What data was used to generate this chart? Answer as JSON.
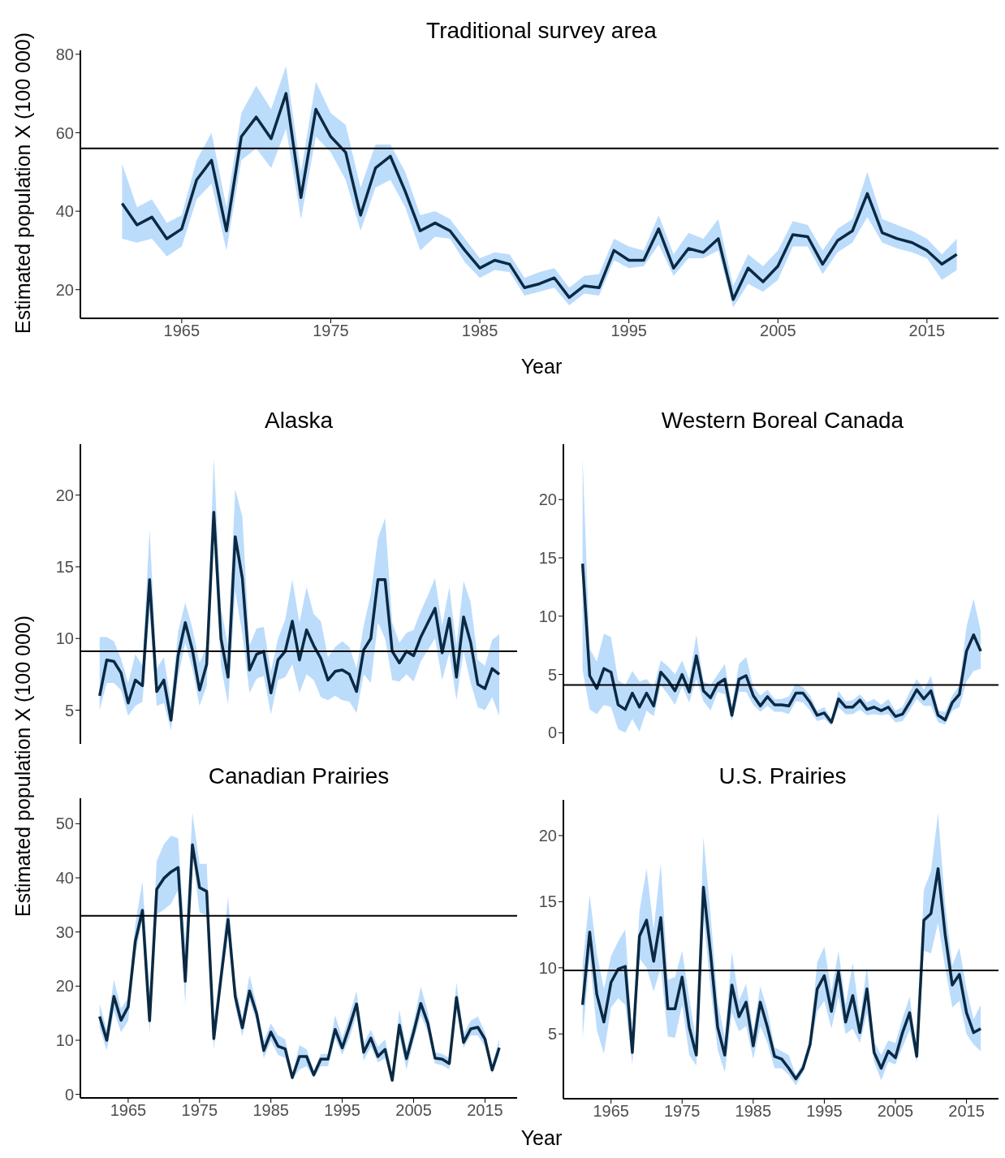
{
  "chart_data": [
    {
      "type": "line",
      "title": "Traditional survey area",
      "xlabel": "Year",
      "ylabel": "Estimated population X (100 000)",
      "x": [
        1961,
        1962,
        1963,
        1964,
        1965,
        1966,
        1967,
        1968,
        1969,
        1970,
        1971,
        1972,
        1973,
        1974,
        1975,
        1976,
        1977,
        1978,
        1979,
        1980,
        1981,
        1982,
        1983,
        1984,
        1985,
        1986,
        1987,
        1988,
        1989,
        1990,
        1991,
        1992,
        1993,
        1994,
        1995,
        1996,
        1997,
        1998,
        1999,
        2000,
        2001,
        2002,
        2003,
        2004,
        2005,
        2006,
        2007,
        2008,
        2009,
        2010,
        2011,
        2012,
        2013,
        2014,
        2015,
        2016,
        2017
      ],
      "series": [
        {
          "color": "#0b2942",
          "values": [
            42,
            36.5,
            38.5,
            33,
            35.5,
            48,
            53,
            35,
            59,
            64,
            58.5,
            70,
            43.5,
            66,
            59,
            55,
            39,
            51,
            54,
            45,
            35,
            37,
            35,
            30,
            25.5,
            27.5,
            26.5,
            20.5,
            21.5,
            23,
            18,
            21,
            20.5,
            30,
            27.5,
            27.5,
            35.5,
            25.5,
            30.5,
            29.5,
            33,
            17.5,
            25.5,
            22,
            26,
            34,
            33.5,
            26.5,
            32.5,
            35,
            44.5,
            34.5,
            33,
            32,
            30,
            26.5,
            29
          ],
          "lower": [
            33,
            32,
            33,
            28.5,
            31,
            43,
            47,
            30,
            53,
            56,
            51,
            61,
            38,
            59,
            55,
            48,
            35,
            46,
            48,
            41,
            30,
            33.5,
            33,
            27,
            23,
            25,
            24.5,
            18.5,
            19.5,
            20.5,
            16,
            19,
            18.5,
            27.5,
            25.5,
            26,
            31.5,
            23.5,
            28,
            28,
            30,
            15.5,
            21.5,
            19.5,
            22.5,
            31,
            31,
            24,
            29.5,
            32,
            38.5,
            32,
            30.5,
            29.5,
            28,
            22.5,
            25
          ],
          "upper": [
            52,
            41,
            43,
            37,
            39,
            53,
            60,
            41,
            65,
            72,
            66,
            77,
            50,
            73,
            65,
            62,
            46,
            57,
            57,
            50,
            39,
            40,
            38,
            33,
            28,
            29.5,
            29,
            23,
            24.5,
            25.5,
            20.5,
            23.5,
            24,
            33,
            31,
            30,
            39,
            29,
            34.5,
            33,
            38,
            21,
            29,
            26,
            30,
            37.5,
            36.5,
            30,
            35.5,
            38,
            50,
            38,
            36.5,
            35,
            33,
            29,
            33
          ]
        }
      ],
      "xlim": [
        1958.2,
        2019.8
      ],
      "xticks": [
        1965,
        1975,
        1985,
        1995,
        2005,
        2015
      ],
      "ylim": [
        12.7,
        81
      ],
      "yticks": [
        20,
        40,
        60,
        80
      ],
      "ref_lines": [
        {
          "axis": "y",
          "value": 56
        }
      ]
    },
    {
      "type": "line",
      "title": "Alaska",
      "ylabel": "Estimated population X (100 000)",
      "x": [
        1961,
        1962,
        1963,
        1964,
        1965,
        1966,
        1967,
        1968,
        1969,
        1970,
        1971,
        1972,
        1973,
        1974,
        1975,
        1976,
        1977,
        1978,
        1979,
        1980,
        1981,
        1982,
        1983,
        1984,
        1985,
        1986,
        1987,
        1988,
        1989,
        1990,
        1991,
        1992,
        1993,
        1994,
        1995,
        1996,
        1997,
        1998,
        1999,
        2000,
        2001,
        2002,
        2003,
        2004,
        2005,
        2006,
        2007,
        2008,
        2009,
        2010,
        2011,
        2012,
        2013,
        2014,
        2015,
        2016,
        2017
      ],
      "series": [
        {
          "color": "#0b2942",
          "values": [
            6.0,
            8.5,
            8.4,
            7.6,
            5.5,
            7.1,
            6.7,
            14.1,
            6.3,
            7.1,
            4.3,
            8.8,
            11.1,
            9.2,
            6.4,
            8.2,
            18.8,
            10,
            7.3,
            17.1,
            14.2,
            7.8,
            8.9,
            9.1,
            6.2,
            8.5,
            9.1,
            11.2,
            8.5,
            10.6,
            9.5,
            8.6,
            7.1,
            7.7,
            7.8,
            7.5,
            6.3,
            9.2,
            10,
            14.1,
            14.1,
            9.1,
            8.3,
            9.1,
            8.8,
            10.1,
            11.1,
            12.1,
            9.0,
            11.4,
            7.3,
            11.5,
            9.7,
            6.8,
            6.5,
            7.9,
            7.5
          ],
          "lower": [
            5.0,
            6.9,
            6.9,
            6.4,
            4.6,
            5.3,
            5.6,
            11.9,
            5.3,
            5.5,
            3.6,
            7.3,
            9.7,
            7.9,
            5.3,
            6.7,
            17.1,
            8.1,
            5.4,
            13.3,
            10.3,
            6.2,
            7.2,
            7.4,
            4.7,
            7.1,
            7.3,
            8.2,
            6.2,
            7.5,
            7.1,
            5.9,
            5.7,
            6.0,
            5.7,
            5.6,
            4.8,
            7.5,
            6.9,
            11.1,
            10,
            7.1,
            7.0,
            7.5,
            7.0,
            8.4,
            9.2,
            10,
            7.1,
            9,
            5.7,
            9.1,
            6.9,
            5.2,
            5.0,
            5.9,
            4.6
          ],
          "upper": [
            10.1,
            10.1,
            9.8,
            8.6,
            6.9,
            8.9,
            8.1,
            17.6,
            7.9,
            8.7,
            5.5,
            10.5,
            12.5,
            10.7,
            8.3,
            9.5,
            22.6,
            12.1,
            9.5,
            20.4,
            18.5,
            9.5,
            10.7,
            10.8,
            7.7,
            10,
            11.3,
            14.1,
            11.1,
            13.6,
            11.7,
            11.2,
            8.7,
            9.4,
            9.8,
            9.4,
            7.9,
            10.9,
            13.1,
            17,
            18.4,
            11.1,
            9.7,
            10.4,
            10.6,
            11.9,
            13,
            14.2,
            10.9,
            13.6,
            9.5,
            14,
            12.5,
            8.5,
            8.1,
            9.9,
            10.3
          ]
        }
      ],
      "xlim": [
        1958.3,
        2019.5
      ],
      "ylim": [
        2.65,
        23.55
      ],
      "yticks": [
        5,
        10,
        15,
        20
      ],
      "tick_labels": "y",
      "ref_lines": [
        {
          "axis": "y",
          "value": 9.1
        }
      ]
    },
    {
      "type": "line",
      "title": "Western Boreal Canada",
      "x": [
        1961,
        1962,
        1963,
        1964,
        1965,
        1966,
        1967,
        1968,
        1969,
        1970,
        1971,
        1972,
        1973,
        1974,
        1975,
        1976,
        1977,
        1978,
        1979,
        1980,
        1981,
        1982,
        1983,
        1984,
        1985,
        1986,
        1987,
        1988,
        1989,
        1990,
        1991,
        1992,
        1993,
        1994,
        1995,
        1996,
        1997,
        1998,
        1999,
        2000,
        2001,
        2002,
        2003,
        2004,
        2005,
        2006,
        2007,
        2008,
        2009,
        2010,
        2011,
        2012,
        2013,
        2014,
        2015,
        2016,
        2017
      ],
      "series": [
        {
          "color": "#0b2942",
          "values": [
            14.5,
            4.9,
            3.8,
            5.5,
            5.2,
            2.4,
            2.0,
            3.4,
            2.2,
            3.4,
            2.3,
            5.2,
            4.5,
            3.6,
            5.0,
            3.5,
            6.6,
            3.6,
            3.0,
            4.2,
            4.6,
            1.5,
            4.6,
            4.9,
            3.2,
            2.3,
            3.1,
            2.4,
            2.4,
            2.3,
            3.4,
            3.4,
            2.6,
            1.5,
            1.7,
            0.9,
            2.9,
            2.2,
            2.2,
            2.8,
            2.0,
            2.2,
            1.9,
            2.2,
            1.4,
            1.6,
            2.6,
            3.7,
            2.9,
            3.6,
            1.5,
            1.1,
            2.6,
            3.3,
            7.0,
            8.4,
            7.0
          ],
          "lower": [
            5.4,
            2.0,
            1.6,
            2.4,
            2.2,
            0.3,
            0,
            1.2,
            0.1,
            1.9,
            1.4,
            4.1,
            3.3,
            2.4,
            4.0,
            2.6,
            4.6,
            2.7,
            1.9,
            3.5,
            3.3,
            1.0,
            3.5,
            3.5,
            2.4,
            1.8,
            2.3,
            1.8,
            1.8,
            1.6,
            2.7,
            2.6,
            1.9,
            1.0,
            1.2,
            0.6,
            2.2,
            1.6,
            1.6,
            2.0,
            1.5,
            1.6,
            1.5,
            1.6,
            0.9,
            1.0,
            1.9,
            2.9,
            2.3,
            2.3,
            0.9,
            0.7,
            1.9,
            2.2,
            4.4,
            5.3,
            5.5
          ],
          "upper": [
            23.6,
            7.2,
            6.1,
            8.5,
            8.2,
            4.5,
            4.1,
            5.3,
            4.4,
            4.6,
            3.9,
            6.2,
            5.7,
            5.0,
            6.2,
            4.6,
            8.4,
            4.4,
            4.1,
            5.0,
            5.9,
            2.3,
            5.9,
            6.5,
            4.0,
            3.2,
            3.7,
            2.9,
            2.9,
            3.1,
            4.2,
            3.9,
            3.2,
            1.9,
            2.2,
            1.2,
            3.6,
            2.7,
            2.8,
            3.3,
            2.6,
            2.9,
            2.4,
            2.9,
            1.9,
            2.2,
            3.5,
            4.6,
            3.7,
            4.9,
            1.9,
            1.8,
            3.2,
            4.1,
            9.1,
            11.5,
            8.7
          ]
        }
      ],
      "xlim": [
        1958.3,
        2019.5
      ],
      "ylim": [
        -0.95,
        24.75
      ],
      "yticks": [
        0,
        5,
        10,
        15,
        20
      ],
      "tick_labels": "y",
      "ref_lines": [
        {
          "axis": "y",
          "value": 4.1
        }
      ]
    },
    {
      "type": "line",
      "title": "Canadian Prairies",
      "xlabel": "Year",
      "x": [
        1961,
        1962,
        1963,
        1964,
        1965,
        1966,
        1967,
        1968,
        1969,
        1970,
        1971,
        1972,
        1973,
        1974,
        1975,
        1976,
        1977,
        1978,
        1979,
        1980,
        1981,
        1982,
        1983,
        1984,
        1985,
        1986,
        1987,
        1988,
        1989,
        1990,
        1991,
        1992,
        1993,
        1994,
        1995,
        1996,
        1997,
        1998,
        1999,
        2000,
        2001,
        2002,
        2003,
        2004,
        2005,
        2006,
        2007,
        2008,
        2009,
        2010,
        2011,
        2012,
        2013,
        2014,
        2015,
        2016,
        2017
      ],
      "series": [
        {
          "color": "#0b2942",
          "values": [
            14.4,
            10.0,
            18.1,
            13.7,
            16.2,
            28.3,
            34.0,
            13.6,
            37.9,
            39.9,
            41.1,
            41.9,
            20.9,
            46.1,
            38.2,
            37.5,
            10.3,
            21.5,
            32.3,
            18.1,
            12.3,
            19.1,
            14.9,
            8.1,
            11.5,
            8.9,
            8.4,
            3.1,
            7.0,
            7.0,
            3.6,
            6.5,
            6.5,
            12.0,
            8.6,
            12.5,
            16.7,
            7.8,
            10.4,
            7.0,
            8.3,
            2.6,
            12.8,
            6.6,
            11.5,
            16.8,
            13.1,
            6.7,
            6.5,
            5.7,
            17.9,
            9.6,
            12.1,
            12.4,
            10.2,
            4.5,
            8.6
          ],
          "lower": [
            12.3,
            8.1,
            15.4,
            11.5,
            13.6,
            25.7,
            32.5,
            11.2,
            33.3,
            34.1,
            35.2,
            37.8,
            16.7,
            44.6,
            33.6,
            33.1,
            8.3,
            19.4,
            29.9,
            16.2,
            10.7,
            17.3,
            13.6,
            6.7,
            9.9,
            7.3,
            6.7,
            2.8,
            4.6,
            5.2,
            3.1,
            5.2,
            5.2,
            10.4,
            7.3,
            10.4,
            14.6,
            6.2,
            8.8,
            5.9,
            6.7,
            2.3,
            10.7,
            4.6,
            9.9,
            14.6,
            11.5,
            5.7,
            5.4,
            4.6,
            15.4,
            8.6,
            10.9,
            10.9,
            8.8,
            3.8,
            7.3
          ],
          "upper": [
            16.7,
            12,
            21.2,
            15.9,
            17.8,
            31.5,
            39.4,
            18.8,
            43.1,
            46.2,
            47.8,
            47.3,
            27.8,
            52,
            42.6,
            42.6,
            13.1,
            24.1,
            36.5,
            20.4,
            14.1,
            22,
            16.5,
            9.9,
            13.1,
            10.9,
            10.2,
            3.8,
            9.1,
            8.3,
            4.4,
            7.5,
            7.5,
            14.6,
            10.4,
            14.6,
            19.1,
            9.4,
            12,
            8.8,
            10.2,
            3.6,
            15.7,
            8.3,
            13.3,
            19.9,
            15.2,
            7.8,
            7.5,
            6.7,
            20.7,
            11.2,
            13.6,
            14.4,
            11.5,
            5.4,
            10.2
          ]
        }
      ],
      "xlim": [
        1958.3,
        2019.5
      ],
      "xticks": [
        1965,
        1975,
        1985,
        1995,
        2005,
        2015
      ],
      "ylim": [
        -0.65,
        54.7
      ],
      "yticks": [
        0,
        10,
        20,
        30,
        40,
        50
      ],
      "ref_lines": [
        {
          "axis": "y",
          "value": 33
        }
      ]
    },
    {
      "type": "line",
      "title": "U.S. Prairies",
      "x": [
        1961,
        1962,
        1963,
        1964,
        1965,
        1966,
        1967,
        1968,
        1969,
        1970,
        1971,
        1972,
        1973,
        1974,
        1975,
        1976,
        1977,
        1978,
        1979,
        1980,
        1981,
        1982,
        1983,
        1984,
        1985,
        1986,
        1987,
        1988,
        1989,
        1990,
        1991,
        1992,
        1993,
        1994,
        1995,
        1996,
        1997,
        1998,
        1999,
        2000,
        2001,
        2002,
        2003,
        2004,
        2005,
        2006,
        2007,
        2008,
        2009,
        2010,
        2011,
        2012,
        2013,
        2014,
        2015,
        2016,
        2017
      ],
      "series": [
        {
          "color": "#0b2942",
          "values": [
            7.2,
            12.7,
            8.0,
            5.9,
            8.9,
            9.9,
            10.1,
            3.6,
            12.4,
            13.6,
            10.5,
            13.8,
            6.9,
            6.9,
            9.3,
            5.5,
            3.4,
            16.1,
            11.1,
            5.5,
            3.4,
            8.7,
            6.3,
            7.4,
            4.1,
            7.4,
            5.5,
            3.3,
            3.1,
            2.4,
            1.6,
            2.4,
            4.2,
            8.4,
            9.4,
            6.7,
            9.7,
            5.9,
            7.9,
            5.1,
            8.4,
            3.6,
            2.4,
            3.7,
            3.2,
            5.1,
            6.6,
            3.3,
            13.6,
            14.1,
            17.5,
            12.5,
            8.7,
            9.5,
            6.6,
            5.1,
            5.4
          ],
          "lower": [
            4.7,
            10.7,
            5.3,
            3.5,
            7.0,
            7.7,
            7.2,
            2.7,
            10.7,
            10,
            8.2,
            10,
            4.8,
            4.7,
            7.2,
            3.4,
            2.6,
            13.9,
            8.4,
            3.8,
            2.1,
            6.6,
            5.2,
            5.6,
            3.1,
            5.6,
            4.3,
            2.4,
            2.4,
            1.9,
            1.1,
            2.1,
            3.7,
            6.7,
            7.5,
            5.4,
            7.8,
            5.0,
            5.4,
            4.3,
            6.6,
            2.9,
            1.5,
            2.9,
            2.7,
            4.0,
            5.3,
            2.8,
            11.3,
            11.1,
            13.4,
            10.0,
            7.0,
            7.5,
            5.0,
            4.2,
            3.7
          ],
          "upper": [
            10.2,
            15.5,
            11.1,
            8.4,
            10.9,
            12.0,
            12.9,
            4.7,
            14.3,
            17.5,
            12.9,
            17.9,
            9.1,
            9.3,
            11.3,
            7.7,
            4.4,
            19.9,
            14.0,
            7.5,
            4.7,
            11.2,
            7.5,
            8.8,
            5.2,
            8.6,
            6.8,
            4.0,
            3.7,
            3.4,
            1.9,
            2.8,
            4.7,
            10.4,
            11.6,
            8.2,
            11.3,
            7.2,
            10.4,
            6.1,
            10.1,
            4.4,
            3.4,
            4.5,
            4.3,
            6.2,
            7.8,
            3.9,
            15.9,
            17.3,
            21.7,
            14.8,
            10.2,
            11.5,
            8.4,
            6.1,
            7.2
          ]
        }
      ],
      "xlim": [
        1958.3,
        2019.5
      ],
      "xticks": [
        1965,
        1975,
        1985,
        1995,
        2005,
        2015
      ],
      "ylim": [
        0.1,
        22.7
      ],
      "yticks": [
        5,
        10,
        15,
        20
      ],
      "ref_lines": [
        {
          "axis": "y",
          "value": 9.8
        }
      ]
    }
  ]
}
